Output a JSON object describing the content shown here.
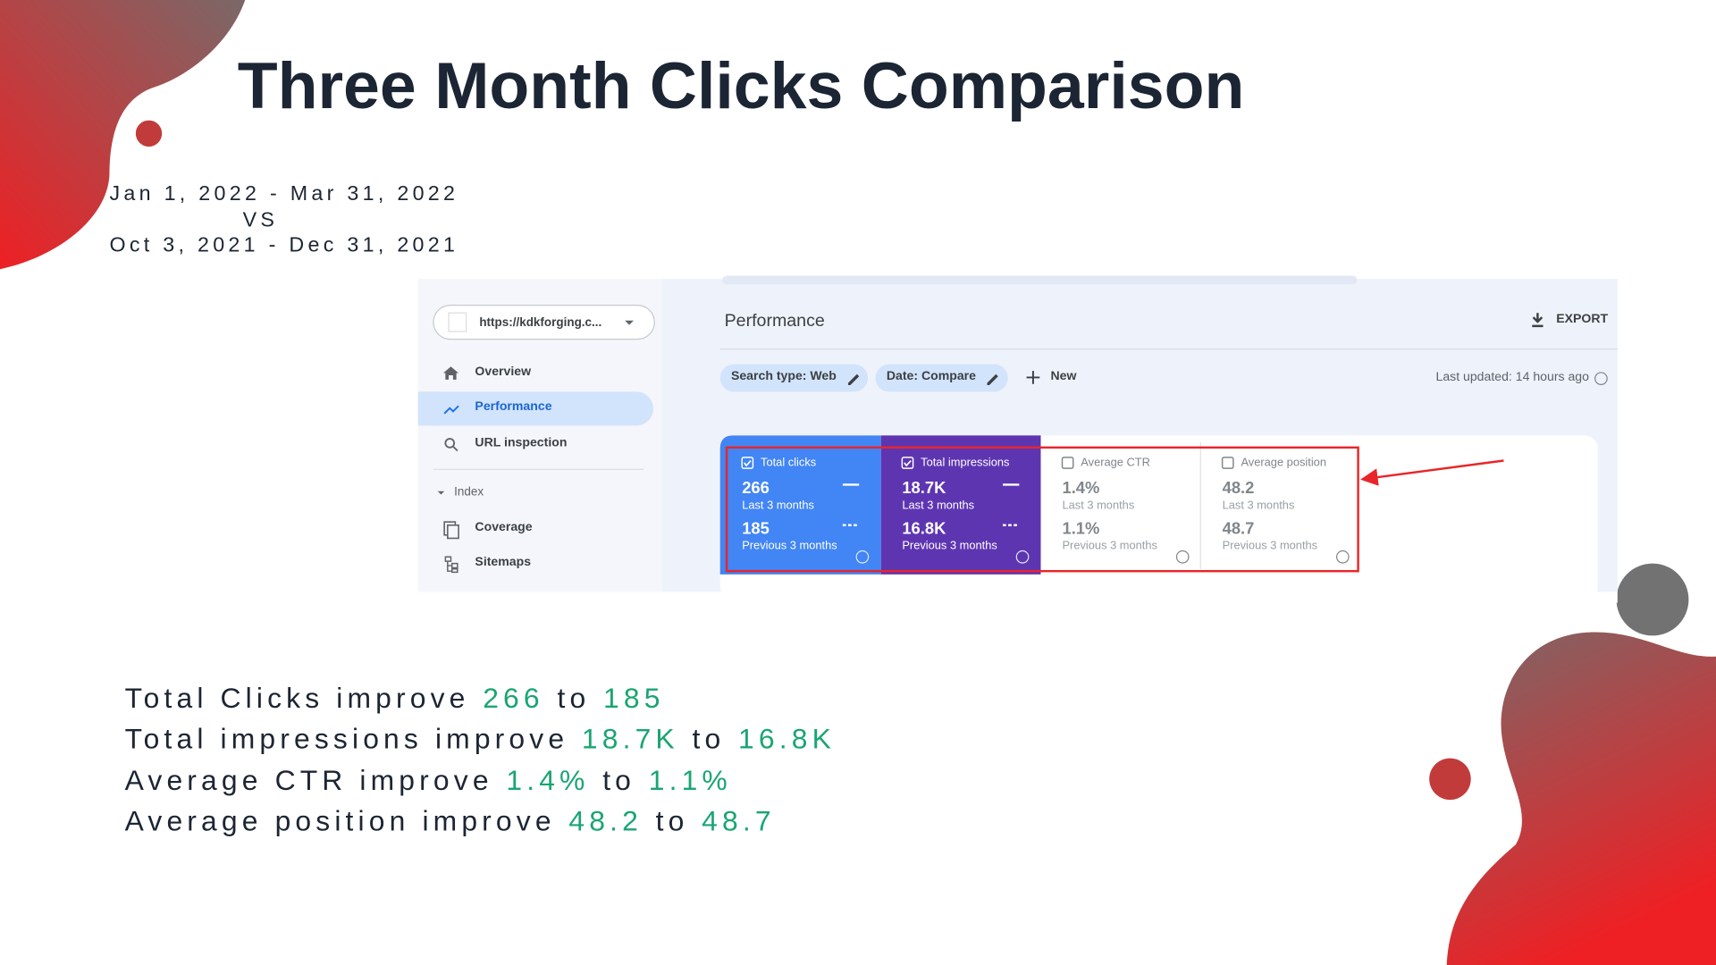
{
  "title": "Three Month Clicks Comparison",
  "date_ranges": {
    "current": "Jan 1, 2022 - Mar 31, 2022",
    "separator": "VS",
    "previous": "Oct 3, 2021 - Dec 31, 2021"
  },
  "screenshot": {
    "sidebar": {
      "property": "https://kdkforging.c...",
      "items": [
        "Overview",
        "Performance",
        "URL inspection"
      ],
      "section": "Index",
      "section_items": [
        "Coverage",
        "Sitemaps"
      ]
    },
    "header": {
      "title": "Performance",
      "export": "EXPORT"
    },
    "filters": [
      "Search type: Web",
      "Date: Compare"
    ],
    "new": "New",
    "last_updated": "Last updated: 14 hours ago",
    "metrics": [
      {
        "label": "Total clicks",
        "current": "266",
        "current_period": "Last 3 months",
        "previous": "185",
        "previous_period": "Previous 3 months"
      },
      {
        "label": "Total impressions",
        "current": "18.7K",
        "current_period": "Last 3 months",
        "previous": "16.8K",
        "previous_period": "Previous 3 months"
      },
      {
        "label": "Average CTR",
        "current": "1.4%",
        "current_period": "Last 3 months",
        "previous": "1.1%",
        "previous_period": "Previous 3 months"
      },
      {
        "label": "Average position",
        "current": "48.2",
        "current_period": "Last 3 months",
        "previous": "48.7",
        "previous_period": "Previous 3 months"
      }
    ]
  },
  "summary": [
    {
      "text": "Total Clicks improve",
      "from": "266",
      "connector": "to",
      "to": "185"
    },
    {
      "text": "Total impressions improve",
      "from": "18.7K",
      "connector": "to",
      "to": "16.8K"
    },
    {
      "text": "Average CTR improve",
      "from": "1.4%",
      "connector": "to",
      "to": "1.1%"
    },
    {
      "text": "Average position improve",
      "from": "48.2",
      "connector": "to",
      "to": "48.7"
    }
  ]
}
